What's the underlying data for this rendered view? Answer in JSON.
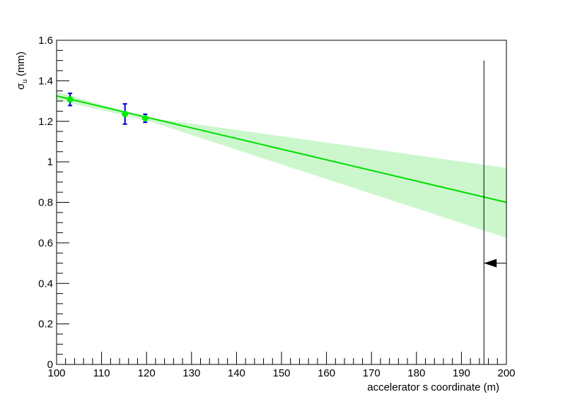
{
  "chart_data": {
    "type": "scatter",
    "xlabel": "accelerator s coordinate (m)",
    "ylabel_main": "σ",
    "ylabel_sub": "u",
    "ylabel_unit": " (mm)",
    "xlim": [
      100,
      200
    ],
    "ylim": [
      0,
      1.6
    ],
    "x_major_ticks": [
      100,
      110,
      120,
      130,
      140,
      150,
      160,
      170,
      180,
      190,
      200
    ],
    "x_tick_labels": [
      "100",
      "110",
      "120",
      "130",
      "140",
      "150",
      "160",
      "170",
      "180",
      "190",
      "200"
    ],
    "y_major_ticks": [
      0,
      0.2,
      0.4,
      0.6,
      0.8,
      1.0,
      1.2,
      1.4,
      1.6
    ],
    "y_tick_labels": [
      "0",
      "0.2",
      "0.4",
      "0.6",
      "0.8",
      "1",
      "1.2",
      "1.4",
      "1.6"
    ],
    "points": [
      {
        "x": 103,
        "y": 1.308,
        "err": 0.03
      },
      {
        "x": 115.2,
        "y": 1.236,
        "err": 0.05
      },
      {
        "x": 119.7,
        "y": 1.215,
        "err": 0.02
      }
    ],
    "fit_line": {
      "x": [
        100,
        200
      ],
      "y": [
        1.325,
        0.8
      ]
    },
    "confidence_band": {
      "x": [
        100,
        120,
        200
      ],
      "upper": [
        1.345,
        1.22,
        0.97
      ],
      "lower": [
        1.305,
        1.205,
        0.625
      ]
    },
    "marker_line": {
      "x": 195,
      "y_top": 1.5,
      "arrow_y": 0.5
    },
    "colors": {
      "fit": "#00dd00",
      "band": "#ccf7cc",
      "points": "#00ee00",
      "error_bars": "#0000cc",
      "marker": "#000000"
    }
  }
}
